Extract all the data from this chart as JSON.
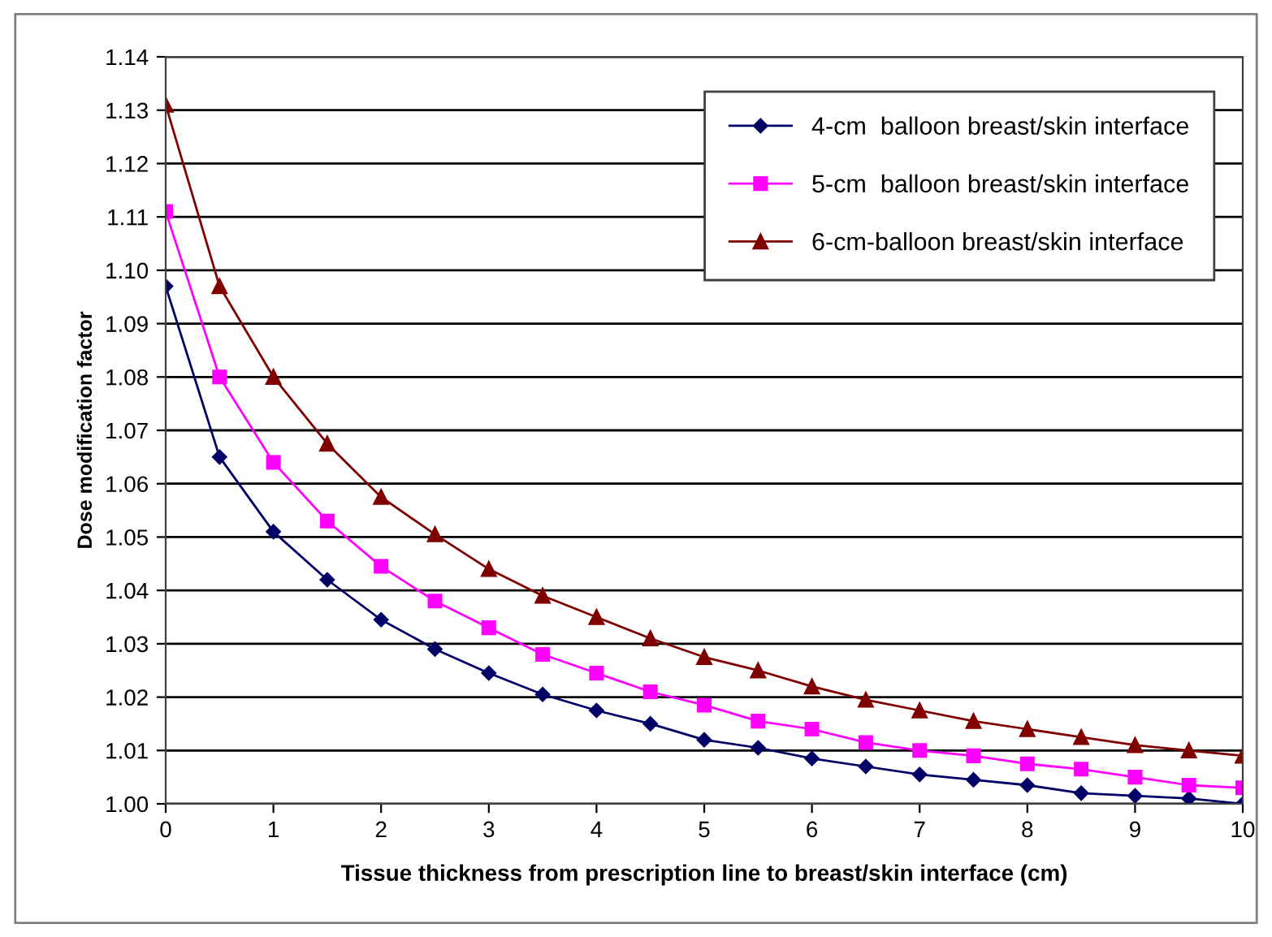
{
  "chart_data": {
    "type": "line",
    "xlabel": "Tissue thickness from prescription line to breast/skin interface (cm)",
    "ylabel": "Dose modification factor",
    "x": [
      0,
      0.5,
      1,
      1.5,
      2,
      2.5,
      3,
      3.5,
      4,
      4.5,
      5,
      5.5,
      6,
      6.5,
      7,
      7.5,
      8,
      8.5,
      9,
      9.5,
      10
    ],
    "series": [
      {
        "name": "4-cm  balloon breast/skin interface",
        "color": "#000066",
        "marker": "diamond",
        "values": [
          1.097,
          1.065,
          1.051,
          1.042,
          1.0345,
          1.029,
          1.0245,
          1.0205,
          1.0175,
          1.015,
          1.012,
          1.0105,
          1.0085,
          1.007,
          1.0055,
          1.0045,
          1.0035,
          1.002,
          1.0015,
          1.001,
          1.0
        ]
      },
      {
        "name": "5-cm  balloon breast/skin interface",
        "color": "#ff00ff",
        "marker": "square",
        "values": [
          1.111,
          1.08,
          1.064,
          1.053,
          1.0445,
          1.038,
          1.033,
          1.028,
          1.0245,
          1.021,
          1.0185,
          1.0155,
          1.014,
          1.0115,
          1.01,
          1.009,
          1.0075,
          1.0065,
          1.005,
          1.0035,
          1.003
        ]
      },
      {
        "name": "6-cm-balloon breast/skin interface",
        "color": "#800000",
        "marker": "triangle",
        "values": [
          1.131,
          1.097,
          1.08,
          1.0675,
          1.0575,
          1.0505,
          1.044,
          1.039,
          1.035,
          1.031,
          1.0275,
          1.025,
          1.022,
          1.0195,
          1.0175,
          1.0155,
          1.014,
          1.0125,
          1.011,
          1.01,
          1.009
        ]
      }
    ],
    "xlim": [
      0,
      10
    ],
    "xticks": [
      0,
      1,
      2,
      3,
      4,
      5,
      6,
      7,
      8,
      9,
      10
    ],
    "ylim": [
      1.0,
      1.14
    ],
    "yticks": [
      {
        "value": 1.0,
        "label": "1.00"
      },
      {
        "value": 1.01,
        "label": "1.01"
      },
      {
        "value": 1.02,
        "label": "1.02"
      },
      {
        "value": 1.03,
        "label": "1.03"
      },
      {
        "value": 1.04,
        "label": "1.04"
      },
      {
        "value": 1.05,
        "label": "1.05"
      },
      {
        "value": 1.06,
        "label": "1.06"
      },
      {
        "value": 1.07,
        "label": "1.07"
      },
      {
        "value": 1.08,
        "label": "1.08"
      },
      {
        "value": 1.09,
        "label": "1.09"
      },
      {
        "value": 1.1,
        "label": "1.10"
      },
      {
        "value": 1.11,
        "label": "1.11"
      },
      {
        "value": 1.12,
        "label": "1.12"
      },
      {
        "value": 1.13,
        "label": "1.13"
      },
      {
        "value": 1.14,
        "label": "1.14"
      }
    ],
    "grid": "y",
    "legend": "top right",
    "line_style": "solid"
  }
}
